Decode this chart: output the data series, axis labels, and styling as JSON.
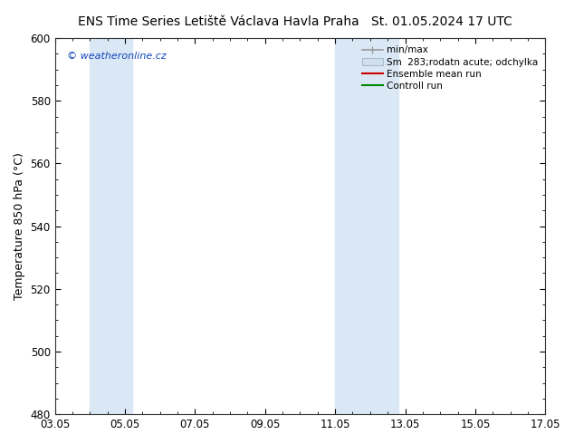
{
  "title_left": "ENS Time Series Letiště Václava Havla Praha",
  "title_right": "St. 01.05.2024 17 UTC",
  "ylabel": "Temperature 850 hPa (°C)",
  "ylim": [
    480,
    600
  ],
  "yticks": [
    480,
    500,
    520,
    540,
    560,
    580,
    600
  ],
  "xlim": [
    0,
    14
  ],
  "xtick_labels": [
    "03.05",
    "05.05",
    "07.05",
    "09.05",
    "11.05",
    "13.05",
    "15.05",
    "17.05"
  ],
  "xtick_positions": [
    0,
    2,
    4,
    6,
    8,
    10,
    12,
    14
  ],
  "shade_bands": [
    {
      "x_start": 1.0,
      "x_end": 2.2,
      "color": "#dae8f5"
    },
    {
      "x_start": 8.0,
      "x_end": 9.8,
      "color": "#dae8f5"
    }
  ],
  "watermark": "© weatheronline.cz",
  "watermark_color": "#1144bb",
  "legend_items": [
    {
      "label": "min/max",
      "color": "#999999",
      "lw": 1.2
    },
    {
      "label": "Sm  283;rodatn acute; odchylka",
      "facecolor": "#d0e0ec",
      "edgecolor": "#aabbcc"
    },
    {
      "label": "Ensemble mean run",
      "color": "#cc0000",
      "lw": 1.5
    },
    {
      "label": "Controll run",
      "color": "#008800",
      "lw": 1.5
    }
  ],
  "bg_color": "#ffffff",
  "plot_bg_color": "#ffffff",
  "title_fontsize": 10,
  "axis_fontsize": 9,
  "tick_fontsize": 8.5,
  "legend_fontsize": 7.5
}
